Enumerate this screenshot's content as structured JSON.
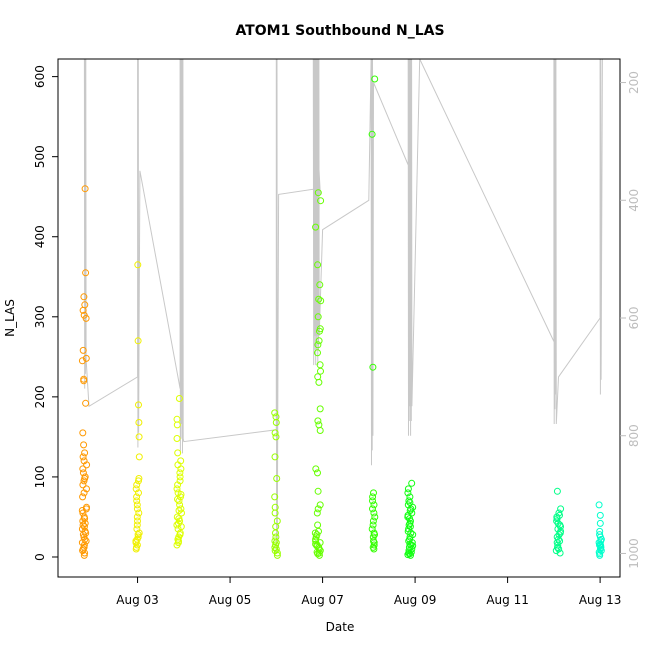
{
  "chart_data": {
    "type": "scatter",
    "title": "ATOM1 Southbound N_LAS",
    "xlabel": "Date",
    "ylabel": "N_LAS",
    "y_ticks": [
      0,
      100,
      200,
      300,
      400,
      500,
      600
    ],
    "x_ticks": [
      {
        "label": "Aug 03",
        "day": 3
      },
      {
        "label": "Aug 05",
        "day": 5
      },
      {
        "label": "Aug 07",
        "day": 7
      },
      {
        "label": "Aug 09",
        "day": 9
      },
      {
        "label": "Aug 11",
        "day": 11
      },
      {
        "label": "Aug 13",
        "day": 13
      }
    ],
    "right_axis": {
      "ticks": [
        200,
        400,
        600,
        800,
        1000
      ],
      "reversed": true,
      "ylim": [
        160,
        1040
      ],
      "color": "#bdbdbd"
    },
    "xlim": [
      1.28,
      13.43
    ],
    "ylim": [
      -25,
      622
    ],
    "grid": false,
    "point_style": "open-circle",
    "clusters": [
      {
        "day": 1.85,
        "color": "#ff9900",
        "spread": 0.1,
        "values": [
          2,
          5,
          8,
          10,
          12,
          15,
          18,
          20,
          22,
          25,
          28,
          30,
          32,
          35,
          38,
          40,
          42,
          45,
          48,
          50,
          55,
          58,
          60,
          62,
          75,
          80,
          85,
          90,
          95,
          98,
          100,
          105,
          110,
          115,
          120,
          125,
          130,
          140,
          155,
          192,
          220,
          222,
          245,
          248,
          258,
          298,
          302,
          308,
          315,
          325,
          355,
          460
        ]
      },
      {
        "day": 3.0,
        "color": "#f0f000",
        "spread": 0.08,
        "values": [
          10,
          12,
          15,
          18,
          20,
          22,
          25,
          28,
          30,
          35,
          40,
          45,
          50,
          55,
          60,
          65,
          70,
          75,
          80,
          85,
          90,
          95,
          98,
          125,
          150,
          168,
          190,
          270,
          365
        ]
      },
      {
        "day": 3.9,
        "color": "#ddff00",
        "spread": 0.1,
        "values": [
          15,
          18,
          20,
          22,
          25,
          28,
          30,
          35,
          38,
          40,
          42,
          45,
          48,
          50,
          55,
          58,
          60,
          65,
          70,
          72,
          75,
          78,
          80,
          85,
          90,
          95,
          100,
          105,
          110,
          115,
          120,
          130,
          148,
          165,
          172,
          198
        ]
      },
      {
        "day": 6.0,
        "color": "#99ff00",
        "spread": 0.07,
        "values": [
          2,
          5,
          8,
          10,
          12,
          15,
          18,
          20,
          25,
          30,
          38,
          45,
          55,
          62,
          75,
          98,
          125,
          150,
          155,
          168,
          175,
          180
        ]
      },
      {
        "day": 6.9,
        "color": "#66ff00",
        "spread": 0.12,
        "values": [
          2,
          4,
          5,
          6,
          8,
          10,
          12,
          14,
          15,
          16,
          18,
          20,
          22,
          25,
          28,
          30,
          32,
          40,
          55,
          60,
          65,
          82,
          105,
          110,
          158,
          165,
          170,
          185,
          218,
          225,
          232,
          240,
          255,
          265,
          270,
          282,
          285,
          300,
          320,
          322,
          340,
          365,
          412,
          445,
          455
        ]
      },
      {
        "day": 8.1,
        "color": "#33ff00",
        "spread": 0.06,
        "values": [
          10,
          12,
          15,
          18,
          20,
          25,
          28,
          30,
          35,
          40,
          45,
          50,
          55,
          60,
          65,
          70,
          75,
          80,
          237,
          528,
          597
        ]
      },
      {
        "day": 8.9,
        "color": "#11ff11",
        "spread": 0.12,
        "values": [
          2,
          3,
          4,
          5,
          6,
          8,
          10,
          12,
          14,
          15,
          16,
          18,
          20,
          22,
          25,
          28,
          30,
          32,
          35,
          38,
          40,
          42,
          45,
          48,
          50,
          52,
          55,
          58,
          60,
          62,
          65,
          68,
          70,
          75,
          80,
          85,
          92
        ]
      },
      {
        "day": 12.1,
        "color": "#00ff88",
        "spread": 0.1,
        "values": [
          5,
          8,
          10,
          12,
          15,
          18,
          20,
          22,
          25,
          28,
          30,
          32,
          35,
          38,
          40,
          42,
          45,
          48,
          50,
          52,
          55,
          60,
          82
        ]
      },
      {
        "day": 13.0,
        "color": "#00ffcc",
        "spread": 0.06,
        "values": [
          2,
          4,
          6,
          8,
          10,
          12,
          14,
          15,
          16,
          18,
          20,
          22,
          25,
          28,
          32,
          42,
          52,
          65
        ]
      }
    ]
  }
}
